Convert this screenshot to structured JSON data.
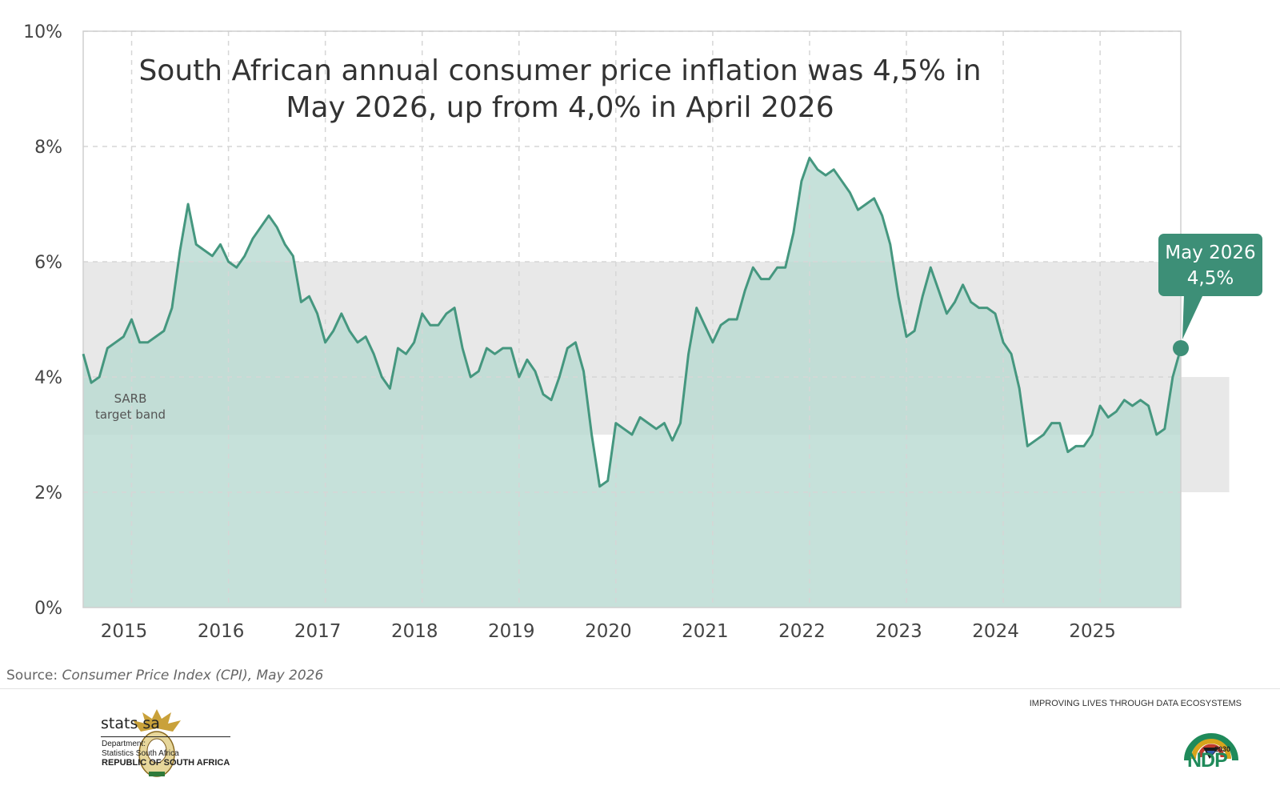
{
  "chart_data": {
    "type": "area",
    "title_lines": [
      "South African annual consumer price inflation was 4,5% in",
      "May 2026, up from 4,0% in April 2026"
    ],
    "xlabel": "",
    "ylabel": "",
    "ylim": [
      0,
      10
    ],
    "y_ticks": [
      0,
      2,
      4,
      6,
      8,
      10
    ],
    "y_tick_labels": [
      "0%",
      "2%",
      "4%",
      "6%",
      "8%",
      "10%"
    ],
    "x_tick_labels": [
      "2015",
      "2016",
      "2017",
      "2018",
      "2019",
      "2020",
      "2021",
      "2022",
      "2023",
      "2024",
      "2025"
    ],
    "grid": true,
    "target_band": {
      "label_lines": [
        "SARB",
        "target band"
      ],
      "segments": [
        {
          "from_month": 0,
          "to_month": 136,
          "low": 3,
          "high": 6
        },
        {
          "from_month": 136,
          "to_month": 142,
          "low": 2,
          "high": 4
        }
      ]
    },
    "series": [
      {
        "start": "2015-01",
        "values": [
          4.4,
          3.9,
          4.0,
          4.5,
          4.6,
          4.7,
          5.0,
          4.6,
          4.6,
          4.7,
          4.8,
          5.2,
          6.2,
          7.0,
          6.3,
          6.2,
          6.1,
          6.3,
          6.0,
          5.9,
          6.1,
          6.4,
          6.6,
          6.8,
          6.6,
          6.3,
          6.1,
          5.3,
          5.4,
          5.1,
          4.6,
          4.8,
          5.1,
          4.8,
          4.6,
          4.7,
          4.4,
          4.0,
          3.8,
          4.5,
          4.4,
          4.6,
          5.1,
          4.9,
          4.9,
          5.1,
          5.2,
          4.5,
          4.0,
          4.1,
          4.5,
          4.4,
          4.5,
          4.5,
          4.0,
          4.3,
          4.1,
          3.7,
          3.6,
          4.0,
          4.5,
          4.6,
          4.1,
          3.0,
          2.1,
          2.2,
          3.2,
          3.1,
          3.0,
          3.3,
          3.2,
          3.1,
          3.2,
          2.9,
          3.2,
          4.4,
          5.2,
          4.9,
          4.6,
          4.9,
          5.0,
          5.0,
          5.5,
          5.9,
          5.7,
          5.7,
          5.9,
          5.9,
          6.5,
          7.4,
          7.8,
          7.6,
          7.5,
          7.6,
          7.4,
          7.2,
          6.9,
          7.0,
          7.1,
          6.8,
          6.3,
          5.4,
          4.7,
          4.8,
          5.4,
          5.9,
          5.5,
          5.1,
          5.3,
          5.6,
          5.3,
          5.2,
          5.2,
          5.1,
          4.6,
          4.4,
          3.8,
          2.8,
          2.9,
          3.0,
          3.2,
          3.2,
          2.7,
          2.8,
          2.8,
          3.0,
          3.5,
          3.3,
          3.4,
          3.6,
          3.5,
          3.6,
          3.5,
          3.0,
          3.1,
          4.0,
          4.5
        ]
      }
    ],
    "callout": {
      "line1": "May 2026",
      "line2": "4,5%"
    },
    "colors": {
      "line": "#45977f",
      "area": "#b9dbd2",
      "band": "#e8e8e8",
      "callout": "#3d8f77",
      "grid": "#d6d6d6"
    }
  },
  "source": {
    "prefix": "Source: ",
    "title": "Consumer Price Index (CPI), May 2026"
  },
  "footer": {
    "org_name": "stats sa",
    "dept_line1": "Department:",
    "dept_line2": "Statistics South Africa",
    "dept_line3": "REPUBLIC OF SOUTH AFRICA",
    "tagline": "IMPROVING LIVES THROUGH DATA ECOSYSTEMS",
    "ndp_text": "NDP",
    "ndp_year": "2030"
  }
}
